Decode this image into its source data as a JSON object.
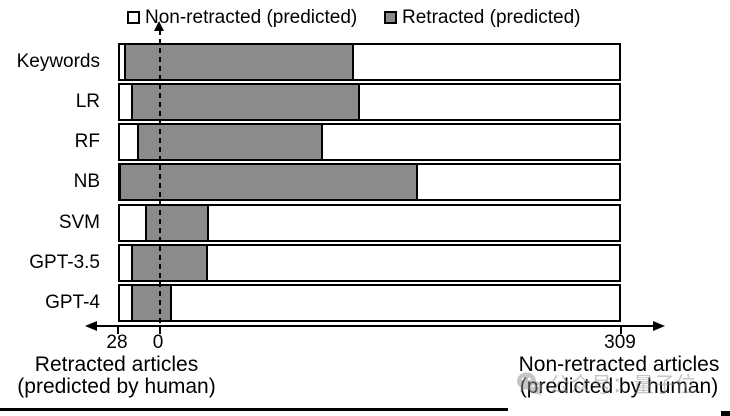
{
  "legend": {
    "items": [
      {
        "label": "Non-retracted (predicted)",
        "swatch": "white"
      },
      {
        "label": "Retracted (predicted)",
        "swatch": "gray"
      }
    ]
  },
  "colors": {
    "retracted_fill": "#8b8b8b",
    "non_retracted_fill": "#ffffff",
    "border": "#000000",
    "watermark": "#8c8c8c"
  },
  "chart_data": {
    "type": "bar",
    "subtype": "horizontal-diverging-stacked",
    "categories": [
      "Keywords",
      "LR",
      "RF",
      "NB",
      "SVM",
      "GPT-3.5",
      "GPT-4"
    ],
    "left_axis": {
      "title_line1": "Retracted articles",
      "title_line2": "(predicted by human)",
      "total": 28
    },
    "right_axis": {
      "title_line1": "Non-retracted articles",
      "title_line2": "(predicted by human)",
      "total": 309
    },
    "series": [
      {
        "name": "Retracted (predicted) among human-labeled retracted",
        "values": [
          24,
          19,
          15,
          27,
          10,
          19,
          19
        ]
      },
      {
        "name": "Non-retracted (predicted) among human-labeled retracted",
        "values": [
          4,
          9,
          13,
          1,
          18,
          9,
          9
        ]
      },
      {
        "name": "Retracted (predicted) among human-labeled non-retracted",
        "values": [
          130,
          134,
          109,
          173,
          33,
          32,
          8
        ]
      },
      {
        "name": "Non-retracted (predicted) among human-labeled non-retracted",
        "values": [
          179,
          175,
          200,
          136,
          276,
          277,
          301
        ]
      }
    ],
    "zero_line": "dashed",
    "legend_position": "top"
  },
  "axis_ticks": {
    "left": "28",
    "zero": "0",
    "right": "309"
  },
  "watermark": {
    "text": "公众号：量子位",
    "icon": "wechat-icon"
  }
}
